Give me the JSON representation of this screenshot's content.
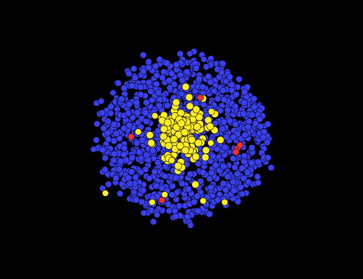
{
  "scene": {
    "background": "#000000",
    "particle_colors": {
      "blue": "#3a3ff0",
      "yellow": "#ffee22",
      "red": "#ee3333"
    },
    "outline_color": "#000000",
    "particle_counts": {
      "blue": 1100,
      "yellow": 160,
      "red": 6
    }
  }
}
